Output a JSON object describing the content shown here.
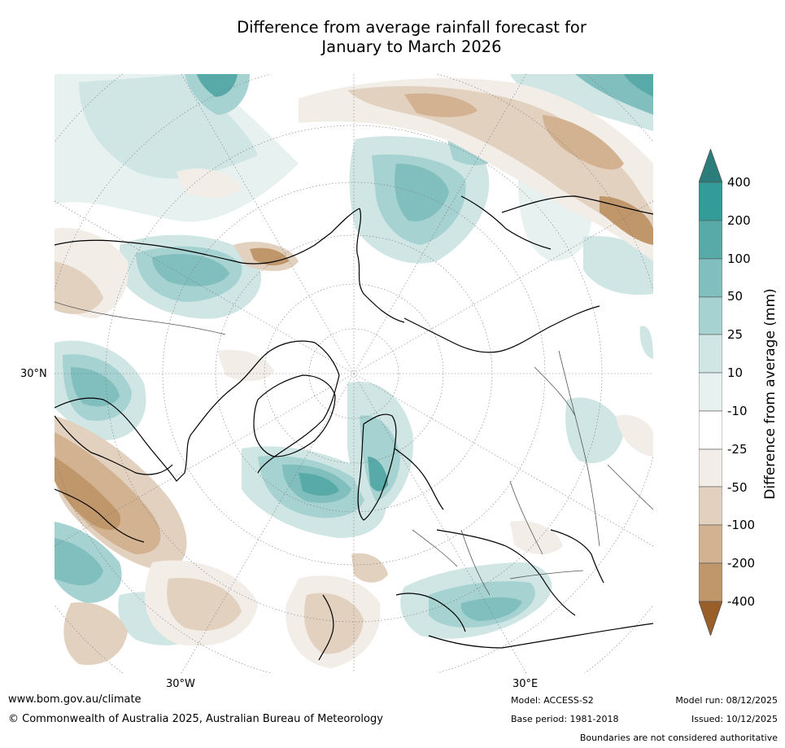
{
  "title": {
    "line1": "Difference from average rainfall forecast for",
    "line2": "January to March 2026"
  },
  "map": {
    "projection": "north polar stereographic",
    "graticule_labels": {
      "lat_left": "30°N",
      "lon_bottom_left": "30°W",
      "lon_bottom_right": "30°E"
    }
  },
  "legend": {
    "title": "Difference from average (mm)",
    "levels": [
      "400",
      "200",
      "100",
      "50",
      "25",
      "10",
      "-10",
      "-25",
      "-50",
      "-100",
      "-200",
      "-400"
    ],
    "colors": {
      "extend_top": "#2a7d7a",
      "400_plus": "#339c98",
      "200_400": "#58aaa8",
      "100_200": "#80bfbd",
      "50_100": "#a6d2d1",
      "25_50": "#cfe6e5",
      "10_25": "#e6f1f0",
      "neutral": "#ffffff",
      "m25_m10": "#f2ede7",
      "m50_m25": "#e3d1c0",
      "m100_m50": "#d2b291",
      "m200_m100": "#c0966b",
      "m400_m200": "#b07944",
      "extend_bottom": "#9a5e28"
    }
  },
  "footer": {
    "website": "www.bom.gov.au/climate",
    "copyright": "© Commonwealth of Australia 2025, Australian Bureau of Meteorology",
    "model": "Model: ACCESS-S2",
    "base_period": "Base period: 1981-2018",
    "model_run": "Model run: 08/12/2025",
    "issued": "Issued: 10/12/2025",
    "disclaimer": "Boundaries are not considered authoritative"
  }
}
